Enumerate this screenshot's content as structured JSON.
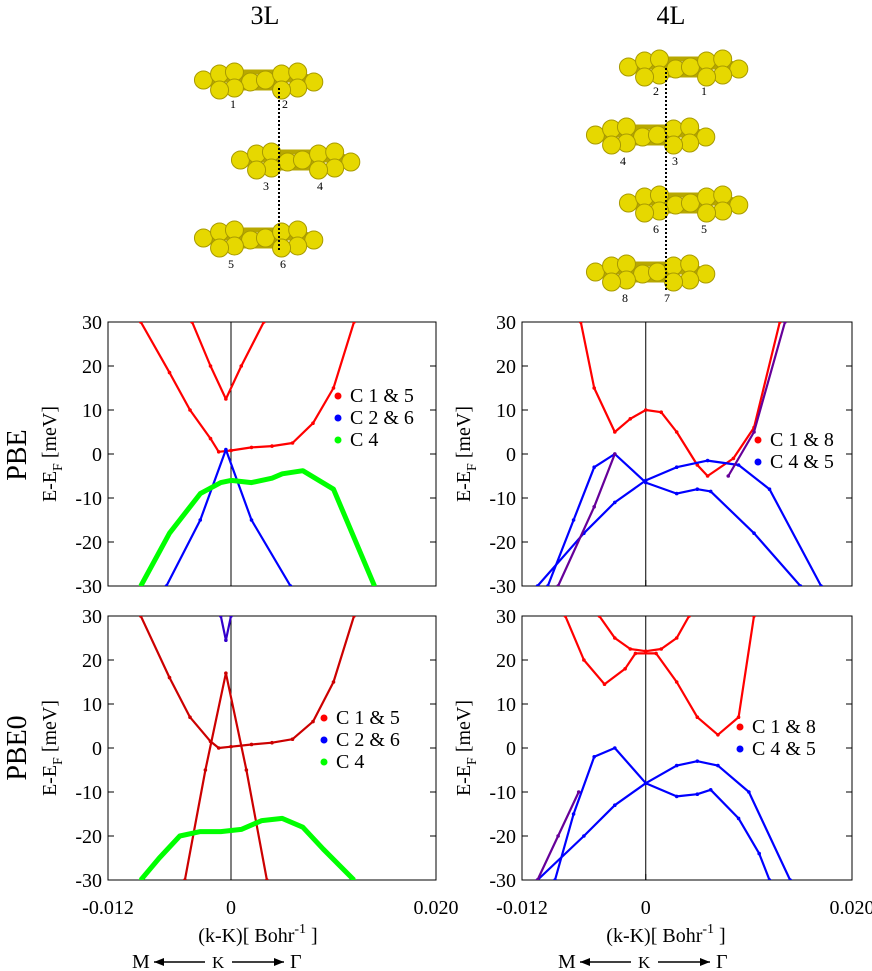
{
  "headers": {
    "left": "3L",
    "right": "4L"
  },
  "rows": {
    "top": "PBE",
    "bottom": "PBE0"
  },
  "ylabel_main": "E-E",
  "ylabel_sub": "F",
  "ylabel_unit": " [meV]",
  "xlabel_main": "(k-K)[ Bohr",
  "xlabel_sup": "-1",
  "xlabel_end": " ]",
  "path_labels": {
    "m": "M",
    "k": "K",
    "g": "Γ"
  },
  "structure_labels": {
    "l3": [
      "1",
      "2",
      "3",
      "4",
      "5",
      "6"
    ],
    "l4": [
      "2",
      "1",
      "4",
      "3",
      "6",
      "5",
      "8",
      "7"
    ]
  },
  "colors": {
    "red": "#ff0000",
    "blue": "#0000ff",
    "green": "#00ff00",
    "dark_red": "#cc0000",
    "dark_blue": "#3300cc",
    "purple": "#660099",
    "atom": "#e6d800"
  },
  "chart_data": [
    {
      "id": "pbe_3l",
      "type": "line",
      "xlim": [
        -0.012,
        0.02
      ],
      "ylim": [
        -30,
        30
      ],
      "yticks": [
        -30,
        -20,
        -10,
        0,
        10,
        20,
        30
      ],
      "xticks": [
        -0.012,
        0,
        0.02
      ],
      "xtick_labels": [
        "-0.012",
        "0",
        "0.020"
      ],
      "legend": [
        "C 1 & 5",
        "C 2 & 6",
        "C 4"
      ],
      "series": [
        {
          "name": "C 1 & 5",
          "color": "red",
          "x": [
            -0.0088,
            -0.006,
            -0.004,
            -0.002,
            -0.0012,
            0,
            0.002,
            0.004,
            0.006,
            0.008,
            0.01,
            0.012
          ],
          "y": [
            30,
            18.5,
            10,
            3.5,
            0.5,
            0.8,
            1.5,
            1.8,
            2.5,
            7,
            15,
            30
          ]
        },
        {
          "name": "",
          "color": "red",
          "x": [
            -0.0038,
            -0.002,
            -0.0005,
            0.001,
            0.0032
          ],
          "y": [
            30,
            20,
            12.5,
            20,
            30
          ]
        },
        {
          "name": "C 2 & 6",
          "color": "blue",
          "x": [
            -0.0063,
            -0.003,
            -0.0005,
            0.002,
            0.0058
          ],
          "y": [
            -30,
            -15,
            1,
            -15,
            -30
          ]
        },
        {
          "name": "C 4",
          "color": "green",
          "x": [
            -0.0088,
            -0.006,
            -0.003,
            -0.001,
            0,
            0.002,
            0.004,
            0.005,
            0.007,
            0.01,
            0.014
          ],
          "y": [
            -30,
            -18,
            -9,
            -6.5,
            -6,
            -6.5,
            -5.5,
            -4.5,
            -3.8,
            -8,
            -30
          ]
        }
      ]
    },
    {
      "id": "pbe_4l",
      "type": "line",
      "xlim": [
        -0.012,
        0.02
      ],
      "ylim": [
        -30,
        30
      ],
      "yticks": [
        -30,
        -20,
        -10,
        0,
        10,
        20,
        30
      ],
      "xticks": [
        -0.012,
        0,
        0.02
      ],
      "xtick_labels": [
        "-0.012",
        "0",
        "0.020"
      ],
      "legend": [
        "C 1 & 8",
        "C 4 & 5"
      ],
      "series": [
        {
          "name": "C 1 & 8",
          "color": "red",
          "x": [
            -0.0063,
            -0.005,
            -0.003,
            -0.0015,
            0,
            0.0015,
            0.003,
            0.005,
            0.006,
            0.0085,
            0.0105,
            0.013
          ],
          "y": [
            30,
            15,
            5,
            8,
            10,
            9.5,
            5,
            -2.5,
            -5,
            -1,
            6,
            30
          ]
        },
        {
          "name": "C 4 & 5",
          "color": "blue",
          "x": [
            -0.0095,
            -0.007,
            -0.005,
            -0.003,
            0,
            0.003,
            0.005,
            0.0063,
            0.0105,
            0.015
          ],
          "y": [
            -30,
            -15,
            -3,
            0,
            -6.5,
            -9,
            -8,
            -8.5,
            -18,
            -30
          ]
        },
        {
          "name": "",
          "color": "blue",
          "x": [
            -0.0105,
            -0.006,
            -0.003,
            0,
            0.003,
            0.006,
            0.009,
            0.012,
            0.017
          ],
          "y": [
            -30,
            -18,
            -11,
            -6,
            -3,
            -1.5,
            -2.5,
            -8,
            -30
          ]
        },
        {
          "name": "",
          "color": "purple",
          "x": [
            -0.0085,
            -0.005,
            -0.003
          ],
          "y": [
            -30,
            -12,
            0
          ]
        },
        {
          "name": "",
          "color": "purple",
          "x": [
            0.008,
            0.0105,
            0.0135
          ],
          "y": [
            -5,
            5,
            30
          ]
        }
      ]
    },
    {
      "id": "pbe0_3l",
      "type": "line",
      "xlim": [
        -0.012,
        0.02
      ],
      "ylim": [
        -30,
        30
      ],
      "yticks": [
        -30,
        -20,
        -10,
        0,
        10,
        20,
        30
      ],
      "xticks": [
        -0.012,
        0,
        0.02
      ],
      "xtick_labels": [
        "-0.012",
        "0",
        "0.020"
      ],
      "legend": [
        "C 1 & 5",
        "C 2 & 6",
        "C 4"
      ],
      "series": [
        {
          "name": "C 1 & 5",
          "color": "dark_red",
          "x": [
            -0.0088,
            -0.006,
            -0.004,
            -0.002,
            -0.0012,
            0,
            0.002,
            0.004,
            0.006,
            0.008,
            0.01,
            0.012
          ],
          "y": [
            30,
            16,
            7,
            1.5,
            0,
            0.3,
            0.8,
            1.2,
            2,
            6,
            15,
            30
          ]
        },
        {
          "name": "",
          "color": "dark_red",
          "x": [
            -0.0045,
            -0.0025,
            -0.0005,
            0.0015,
            0.0035
          ],
          "y": [
            -30,
            -5,
            17,
            -5,
            -30
          ]
        },
        {
          "name": "C 2 & 6",
          "color": "dark_blue",
          "x": [
            -0.001,
            -0.0005,
            0
          ],
          "y": [
            30,
            24.5,
            30
          ]
        },
        {
          "name": "C 4",
          "color": "green",
          "x": [
            -0.0088,
            -0.007,
            -0.005,
            -0.003,
            -0.001,
            0.001,
            0.003,
            0.005,
            0.007,
            0.009,
            0.012
          ],
          "y": [
            -30,
            -25,
            -20,
            -19,
            -19,
            -18.5,
            -16.5,
            -16,
            -18,
            -23,
            -30
          ]
        }
      ]
    },
    {
      "id": "pbe0_4l",
      "type": "line",
      "xlim": [
        -0.012,
        0.02
      ],
      "ylim": [
        -30,
        30
      ],
      "yticks": [
        -30,
        -20,
        -10,
        0,
        10,
        20,
        30
      ],
      "xticks": [
        -0.012,
        0,
        0.02
      ],
      "xtick_labels": [
        "-0.012",
        "0",
        "0.020"
      ],
      "legend": [
        "C 1 & 8",
        "C 4 & 5"
      ],
      "series": [
        {
          "name": "C 1 & 8",
          "color": "red",
          "x": [
            -0.0045,
            -0.003,
            -0.0015,
            0,
            0.0015,
            0.003,
            0.0042
          ],
          "y": [
            30,
            25,
            22.5,
            22,
            22.5,
            25,
            30
          ]
        },
        {
          "name": "",
          "color": "red",
          "x": [
            -0.0078,
            -0.006,
            -0.004,
            -0.002,
            -0.001,
            0.001,
            0.003,
            0.005,
            0.007,
            0.009,
            0.0105
          ],
          "y": [
            30,
            20,
            14.5,
            18,
            21.5,
            21.5,
            15,
            7,
            3,
            7,
            30
          ]
        },
        {
          "name": "C 4 & 5",
          "color": "blue",
          "x": [
            -0.0088,
            -0.007,
            -0.005,
            -0.003,
            0,
            0.003,
            0.005,
            0.0063,
            0.009,
            0.011,
            0.012
          ],
          "y": [
            -30,
            -15,
            -2,
            0,
            -8,
            -11,
            -10.5,
            -9.5,
            -16,
            -24,
            -30
          ]
        },
        {
          "name": "",
          "color": "blue",
          "x": [
            -0.0105,
            -0.006,
            -0.003,
            0,
            0.003,
            0.005,
            0.007,
            0.01,
            0.014
          ],
          "y": [
            -30,
            -20,
            -13,
            -8,
            -4,
            -3,
            -4,
            -10,
            -30
          ]
        },
        {
          "name": "",
          "color": "purple",
          "x": [
            -0.0105,
            -0.0085,
            -0.0065
          ],
          "y": [
            -30,
            -20,
            -10
          ]
        }
      ]
    }
  ]
}
